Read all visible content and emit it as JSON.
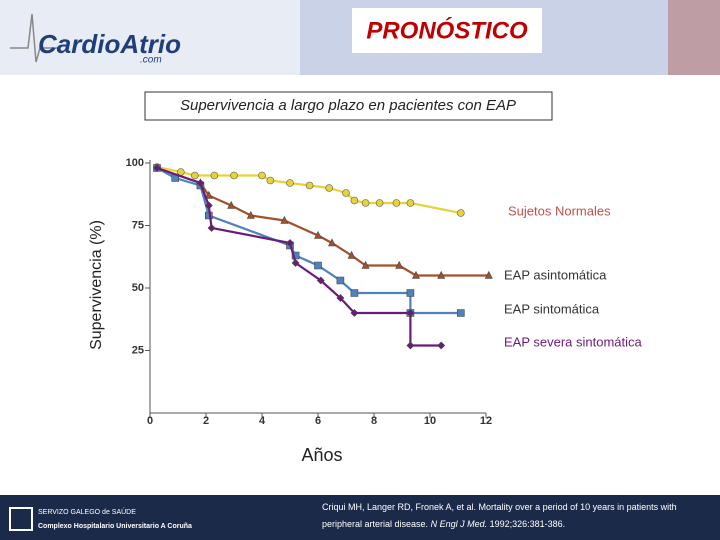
{
  "header": {
    "logo": "CardioAtrio",
    "logo_sub": ".com",
    "title": "PRONÓSTICO"
  },
  "chart_data": {
    "type": "line",
    "title": "Supervivencia a largo plazo en pacientes con EAP",
    "y_label": "Supervivencia (%)",
    "x_label": "Años",
    "xlim": [
      0,
      12
    ],
    "xticks": [
      0,
      2,
      4,
      6,
      8,
      10,
      12
    ],
    "ylim": [
      0,
      100
    ],
    "yticks": [
      25,
      50,
      75,
      100
    ],
    "series": [
      {
        "name": "Sujetos Normales",
        "color": "#e8d23a",
        "marker": "circle",
        "label_color": "#c0504d",
        "x": [
          0.25,
          1.1,
          1.6,
          2.3,
          3,
          4,
          4.3,
          5,
          5.7,
          6.4,
          7,
          7.3,
          7.7,
          8.2,
          8.8,
          9.3,
          11.1
        ],
        "values": [
          98.4,
          96.4,
          95,
          95,
          95,
          95,
          93,
          92,
          91,
          90,
          88,
          85,
          84,
          84,
          84,
          84,
          80
        ]
      },
      {
        "name": "EAP asintomática",
        "color": "#a0522d",
        "marker": "triangle",
        "label_color": "#333333",
        "x": [
          0.25,
          1.8,
          2.1,
          2.9,
          3.6,
          4.8,
          6,
          6.5,
          7.2,
          7.7,
          8.9,
          9.5,
          10.4,
          12.1
        ],
        "values": [
          98,
          92,
          87,
          83,
          79,
          77,
          71,
          68,
          63,
          59,
          59,
          55,
          55,
          55
        ]
      },
      {
        "name": "EAP sintomática",
        "color": "#4f81bd",
        "marker": "square",
        "label_color": "#333333",
        "x": [
          0.25,
          0.9,
          1.8,
          2.1,
          5,
          5.2,
          6,
          6.8,
          7.3,
          9.3,
          9.3,
          11.1
        ],
        "values": [
          98,
          94,
          91,
          79,
          67,
          63,
          59,
          53,
          48,
          48,
          40,
          40
        ]
      },
      {
        "name": "EAP severa sintomática",
        "color": "#6a1b7a",
        "marker": "diamond",
        "label_color": "#6a1b7a",
        "x": [
          0.25,
          1.8,
          2.1,
          2.2,
          5,
          5.2,
          6.1,
          6.8,
          7.3,
          9.3,
          9.3,
          10.4
        ],
        "values": [
          98,
          92,
          83,
          74,
          68,
          60,
          53,
          46,
          40,
          40,
          27,
          27
        ]
      }
    ]
  },
  "footer": {
    "org1": "SERVIZO GALEGO de SAÚDE",
    "org2": "Complexo Hospitalario Universitario A Coruña",
    "citation": "Criqui MH, Langer RD, Fronek A, et al. Mortality over a period of 10 years in patients with peripheral arterial disease. ",
    "journal": "N Engl J Med.",
    "citation_end": " 1992;326:381-386."
  }
}
